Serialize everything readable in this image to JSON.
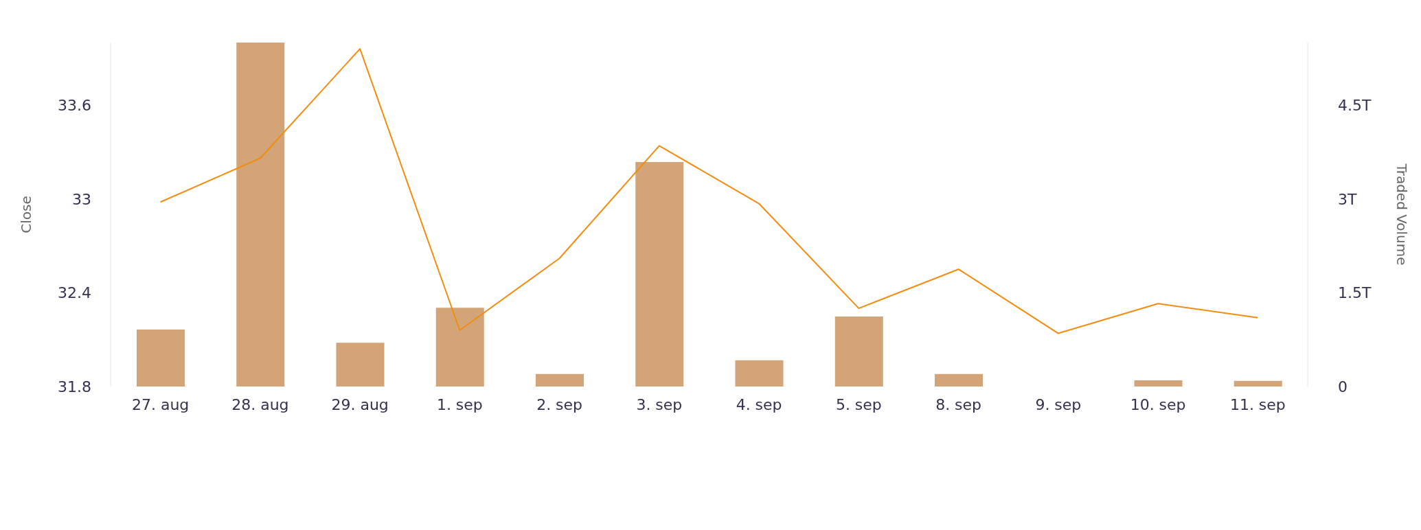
{
  "chart_data": {
    "type": "bar",
    "xlabel": null,
    "ylabel": "Close",
    "y2label": "Traded Volume",
    "categories": [
      "27. aug",
      "28. aug",
      "29. aug",
      "1. sep",
      "2. sep",
      "3. sep",
      "4. sep",
      "5. sep",
      "8. sep",
      "9. sep",
      "10. sep",
      "11. sep"
    ],
    "series": [
      {
        "type": "line",
        "color": "#f28c0f",
        "values": [
          32.98,
          33.26,
          33.96,
          32.16,
          32.62,
          33.34,
          32.97,
          32.3,
          32.55,
          32.14,
          32.33,
          32.24
        ]
      },
      {
        "axis": "y2",
        "color": "#d2a477",
        "values": [
          0.91,
          5.5,
          0.7,
          1.26,
          0.2,
          3.59,
          0.42,
          1.12,
          0.2,
          0,
          0.1,
          0.09
        ]
      }
    ],
    "ylim": [
      31.8,
      34.0
    ],
    "yticks": [
      31.8,
      32.4,
      33,
      33.6
    ],
    "y2lim": [
      0,
      5.5
    ],
    "y2ticks": [
      0,
      {
        "value": 1.5,
        "label": "1.5T"
      },
      {
        "value": 3,
        "label": "3T"
      },
      {
        "value": 4.5,
        "label": "4.5T"
      }
    ],
    "grid": false,
    "legend": false,
    "marker": "none",
    "line_style": "solid"
  }
}
